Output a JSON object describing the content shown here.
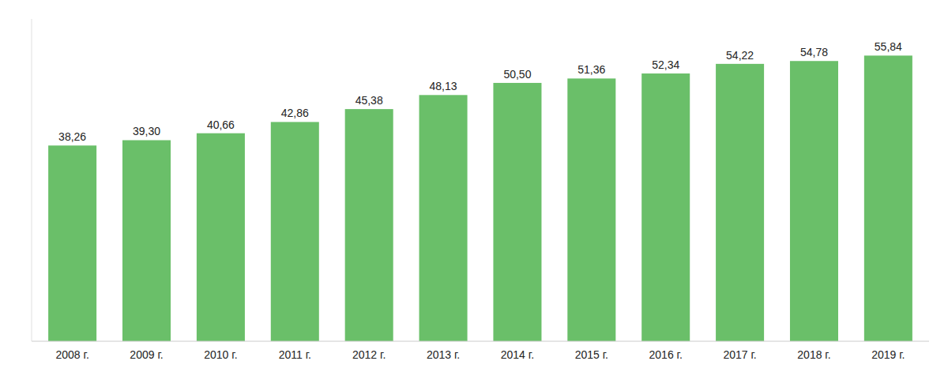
{
  "chart_data": {
    "type": "bar",
    "categories": [
      "2008 г.",
      "2009 г.",
      "2010 г.",
      "2011 г.",
      "2012 г.",
      "2013 г.",
      "2014 г.",
      "2015 г.",
      "2016 г.",
      "2017 г.",
      "2018 г.",
      "2019 г."
    ],
    "values": [
      38.26,
      39.3,
      40.66,
      42.86,
      45.38,
      48.13,
      50.5,
      51.36,
      52.34,
      54.22,
      54.78,
      55.84
    ],
    "value_labels": [
      "38,26",
      "39,30",
      "40,66",
      "42,86",
      "45,38",
      "48,13",
      "50,50",
      "51,36",
      "52,34",
      "54,22",
      "54,78",
      "55,84"
    ],
    "color": "#6abf69",
    "ylim": [
      0,
      63
    ],
    "data_labels": true,
    "tick_labels": "x",
    "grid": false
  }
}
